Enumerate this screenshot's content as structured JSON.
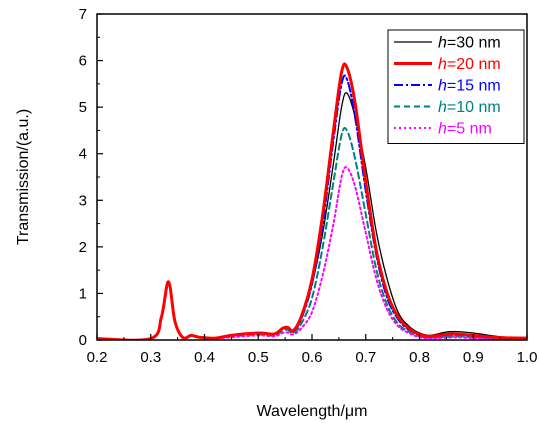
{
  "chart_data": {
    "type": "line",
    "xlabel": "Wavelength/μm",
    "ylabel": "Transmission/(a.u.)",
    "xlim": [
      0.2,
      1.0
    ],
    "ylim": [
      0,
      7
    ],
    "x_ticks": [
      "0.2",
      "0.3",
      "0.4",
      "0.5",
      "0.6",
      "0.7",
      "0.8",
      "0.9",
      "1.0"
    ],
    "y_ticks": [
      "0",
      "1",
      "2",
      "3",
      "4",
      "5",
      "6",
      "7"
    ],
    "grid": false,
    "legend_position": "top-right",
    "legend_prefix": "h",
    "series": [
      {
        "name": "=30 nm",
        "color": "#000000",
        "dash": "solid",
        "x": [
          0.2,
          0.3,
          0.32,
          0.333,
          0.345,
          0.36,
          0.375,
          0.39,
          0.42,
          0.45,
          0.5,
          0.53,
          0.545,
          0.555,
          0.565,
          0.58,
          0.6,
          0.62,
          0.64,
          0.655,
          0.665,
          0.68,
          0.7,
          0.72,
          0.74,
          0.76,
          0.78,
          0.8,
          0.82,
          0.85,
          0.87,
          0.9,
          0.95,
          1.0
        ],
        "y": [
          0.03,
          0.03,
          0.5,
          1.25,
          0.4,
          0.05,
          0.1,
          0.06,
          0.04,
          0.1,
          0.15,
          0.13,
          0.25,
          0.26,
          0.2,
          0.5,
          1.2,
          2.3,
          3.8,
          5.0,
          5.3,
          4.8,
          3.7,
          2.3,
          1.3,
          0.6,
          0.3,
          0.15,
          0.1,
          0.17,
          0.18,
          0.15,
          0.07,
          0.05
        ]
      },
      {
        "name": "=20 nm",
        "color": "#ff0000",
        "dash": "solid",
        "x": [
          0.2,
          0.3,
          0.32,
          0.333,
          0.345,
          0.36,
          0.375,
          0.39,
          0.42,
          0.45,
          0.5,
          0.53,
          0.545,
          0.555,
          0.565,
          0.58,
          0.6,
          0.62,
          0.64,
          0.655,
          0.665,
          0.68,
          0.7,
          0.72,
          0.74,
          0.76,
          0.78,
          0.8,
          0.82,
          0.85,
          0.87,
          0.9,
          0.95,
          1.0
        ],
        "y": [
          0.03,
          0.03,
          0.5,
          1.25,
          0.4,
          0.05,
          0.1,
          0.06,
          0.04,
          0.1,
          0.15,
          0.13,
          0.25,
          0.27,
          0.2,
          0.5,
          1.3,
          2.7,
          4.5,
          5.75,
          5.85,
          5.1,
          3.4,
          1.9,
          1.0,
          0.5,
          0.25,
          0.12,
          0.08,
          0.12,
          0.13,
          0.1,
          0.05,
          0.04
        ]
      },
      {
        "name": "=15 nm",
        "color": "#0000ff",
        "dash": "dashdot",
        "x": [
          0.2,
          0.3,
          0.32,
          0.333,
          0.345,
          0.36,
          0.375,
          0.39,
          0.42,
          0.45,
          0.5,
          0.53,
          0.545,
          0.555,
          0.565,
          0.58,
          0.6,
          0.62,
          0.64,
          0.655,
          0.665,
          0.68,
          0.7,
          0.72,
          0.74,
          0.76,
          0.78,
          0.8,
          0.82,
          0.85,
          0.87,
          0.9,
          0.95,
          1.0
        ],
        "y": [
          0.03,
          0.03,
          0.5,
          1.25,
          0.4,
          0.05,
          0.1,
          0.06,
          0.04,
          0.1,
          0.15,
          0.13,
          0.24,
          0.25,
          0.18,
          0.45,
          1.2,
          2.5,
          4.3,
          5.5,
          5.6,
          4.8,
          3.2,
          1.8,
          0.9,
          0.45,
          0.22,
          0.1,
          0.07,
          0.1,
          0.11,
          0.08,
          0.04,
          0.03
        ]
      },
      {
        "name": "=10 nm",
        "color": "#008080",
        "dash": "dash",
        "x": [
          0.2,
          0.3,
          0.32,
          0.333,
          0.345,
          0.36,
          0.375,
          0.39,
          0.42,
          0.45,
          0.5,
          0.53,
          0.545,
          0.555,
          0.565,
          0.58,
          0.6,
          0.62,
          0.64,
          0.655,
          0.665,
          0.68,
          0.7,
          0.72,
          0.74,
          0.76,
          0.78,
          0.8,
          0.82,
          0.85,
          0.87,
          0.9,
          0.95,
          1.0
        ],
        "y": [
          0.03,
          0.03,
          0.5,
          1.25,
          0.4,
          0.05,
          0.1,
          0.06,
          0.04,
          0.08,
          0.12,
          0.1,
          0.2,
          0.22,
          0.15,
          0.35,
          0.9,
          2.0,
          3.4,
          4.4,
          4.5,
          3.9,
          2.7,
          1.5,
          0.75,
          0.35,
          0.18,
          0.08,
          0.05,
          0.07,
          0.08,
          0.06,
          0.03,
          0.03
        ]
      },
      {
        "name": "=5 nm",
        "color": "#ff00ff",
        "dash": "dot",
        "x": [
          0.2,
          0.3,
          0.32,
          0.333,
          0.345,
          0.36,
          0.375,
          0.39,
          0.42,
          0.45,
          0.5,
          0.53,
          0.545,
          0.555,
          0.565,
          0.58,
          0.6,
          0.62,
          0.64,
          0.655,
          0.665,
          0.68,
          0.7,
          0.72,
          0.74,
          0.76,
          0.78,
          0.8,
          0.82,
          0.85,
          0.87,
          0.9,
          0.95,
          1.0
        ],
        "y": [
          0.03,
          0.03,
          0.5,
          1.25,
          0.4,
          0.05,
          0.1,
          0.06,
          0.04,
          0.06,
          0.1,
          0.08,
          0.15,
          0.16,
          0.12,
          0.25,
          0.6,
          1.4,
          2.5,
          3.5,
          3.7,
          3.3,
          2.3,
          1.3,
          0.65,
          0.3,
          0.15,
          0.06,
          0.04,
          0.05,
          0.06,
          0.04,
          0.02,
          0.02
        ]
      }
    ]
  }
}
